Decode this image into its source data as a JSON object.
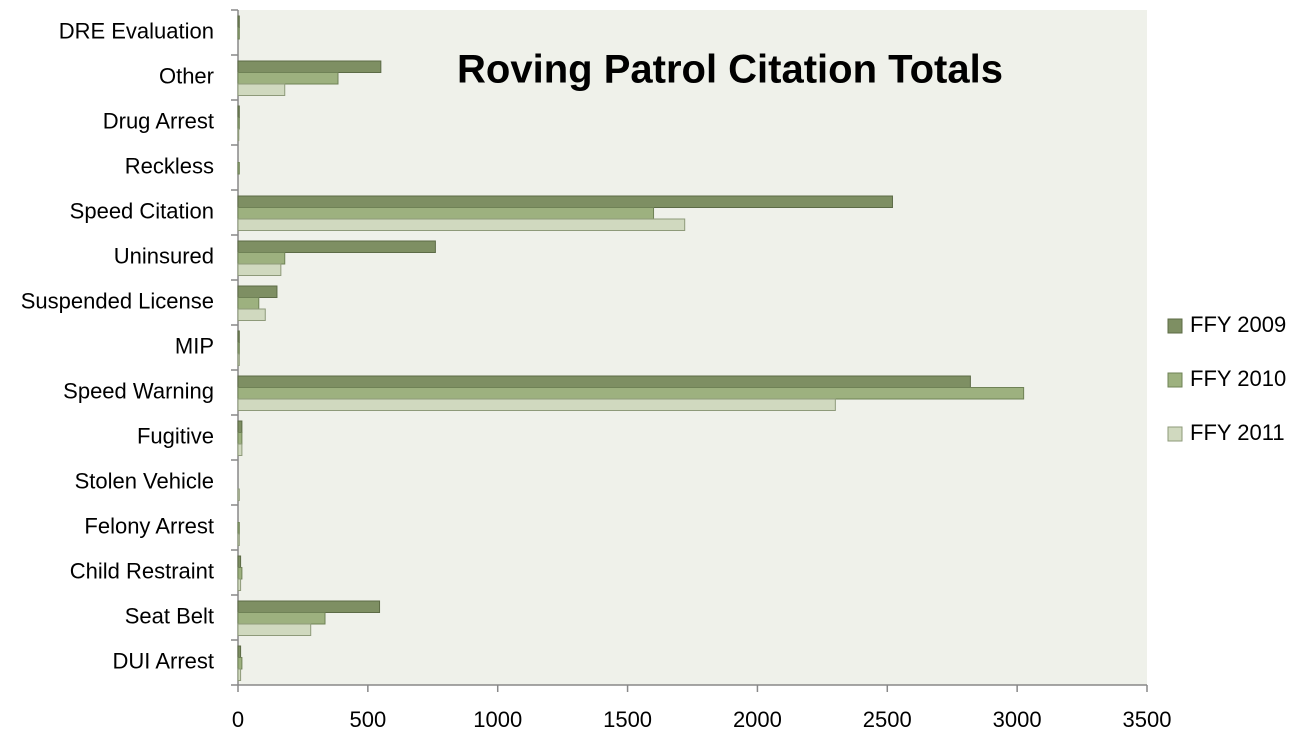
{
  "chart_data": {
    "type": "bar",
    "orientation": "horizontal",
    "title": "Roving Patrol Citation Totals",
    "categories": [
      "DRE Evaluation",
      "Other",
      "Drug Arrest",
      "Reckless",
      "Speed Citation",
      "Uninsured",
      "Suspended License",
      "MIP",
      "Speed Warning",
      "Fugitive",
      "Stolen Vehicle",
      "Felony Arrest",
      "Child Restraint",
      "Seat Belt",
      "DUI Arrest"
    ],
    "series": [
      {
        "name": "FFY 2009",
        "color": "#7e8f63",
        "values": [
          5,
          550,
          5,
          0,
          2520,
          760,
          150,
          5,
          2820,
          15,
          0,
          0,
          10,
          545,
          10
        ]
      },
      {
        "name": "FFY 2010",
        "color": "#9db17f",
        "values": [
          5,
          385,
          5,
          5,
          1600,
          180,
          80,
          5,
          3025,
          15,
          0,
          5,
          15,
          335,
          15
        ]
      },
      {
        "name": "FFY 2011",
        "color": "#d0d9bf",
        "values": [
          0,
          180,
          3,
          0,
          1720,
          165,
          105,
          5,
          2300,
          15,
          5,
          5,
          10,
          280,
          10
        ]
      }
    ],
    "xlim": [
      0,
      3500
    ],
    "xticks": [
      0,
      500,
      1000,
      1500,
      2000,
      2500,
      3000,
      3500
    ],
    "legend": "right"
  }
}
